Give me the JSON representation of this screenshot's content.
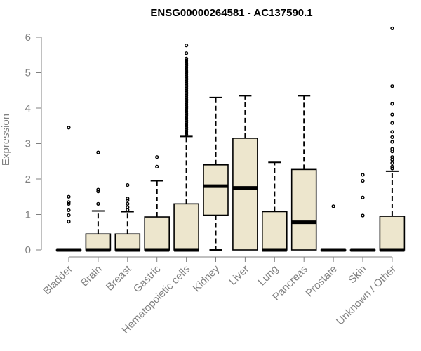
{
  "chart_data": {
    "type": "boxplot",
    "title": "ENSG00000264581 - AC137590.1",
    "xlabel": "",
    "ylabel": "Expression",
    "ylim": [
      0,
      6.2
    ],
    "yticks": [
      0,
      1,
      2,
      3,
      4,
      5,
      6
    ],
    "box_fill": "#ede6cd",
    "outline_color": "#000000",
    "axis_color": "#808080",
    "grid": false,
    "categories": [
      "Bladder",
      "Brain",
      "Breast",
      "Gastric",
      "Hematopoietic cells",
      "Kidney",
      "Liver",
      "Lung",
      "Pancreas",
      "Prostate",
      "Skin",
      "Unknown / Other"
    ],
    "boxes": [
      {
        "category": "Bladder",
        "q1": 0,
        "median": 0,
        "q3": 0,
        "whisker_low": 0,
        "whisker_high": 0,
        "outliers": [
          3.45,
          1.5,
          1.35,
          1.3,
          1.12,
          0.98,
          0.8
        ]
      },
      {
        "category": "Brain",
        "q1": 0,
        "median": 0,
        "q3": 0.45,
        "whisker_low": 0,
        "whisker_high": 1.1,
        "outliers": [
          2.75,
          1.7,
          1.65,
          1.3
        ]
      },
      {
        "category": "Breast",
        "q1": 0,
        "median": 0,
        "q3": 0.45,
        "whisker_low": 0,
        "whisker_high": 1.08,
        "outliers": [
          1.83,
          1.45,
          1.4,
          1.3,
          1.2,
          1.13
        ]
      },
      {
        "category": "Gastric",
        "q1": 0,
        "median": 0,
        "q3": 0.93,
        "whisker_low": 0,
        "whisker_high": 1.95,
        "outliers": [
          2.62,
          2.35
        ]
      },
      {
        "category": "Hematopoietic cells",
        "q1": 0,
        "median": 0,
        "q3": 1.3,
        "whisker_low": 0,
        "whisker_high": 3.2,
        "outliers": [
          5.77,
          5.55,
          5.4,
          5.35,
          5.3,
          5.25,
          5.2,
          5.15,
          5.1,
          5.05,
          5.0,
          4.95,
          4.9,
          4.85,
          4.8,
          4.75,
          4.7,
          4.65,
          4.6,
          4.55,
          4.5,
          4.45,
          4.4,
          4.35,
          4.3,
          4.25,
          4.2,
          4.15,
          4.1,
          4.05,
          4.0,
          3.95,
          3.9,
          3.85,
          3.8,
          3.75,
          3.7,
          3.65,
          3.6,
          3.55,
          3.5,
          3.45,
          3.4,
          3.35,
          3.3,
          3.25
        ]
      },
      {
        "category": "Kidney",
        "q1": 0.98,
        "median": 1.8,
        "q3": 2.4,
        "whisker_low": 0,
        "whisker_high": 4.3,
        "outliers": []
      },
      {
        "category": "Liver",
        "q1": 0,
        "median": 1.75,
        "q3": 3.15,
        "whisker_low": 0,
        "whisker_high": 4.35,
        "outliers": []
      },
      {
        "category": "Lung",
        "q1": 0,
        "median": 0,
        "q3": 1.08,
        "whisker_low": 0,
        "whisker_high": 2.47,
        "outliers": []
      },
      {
        "category": "Pancreas",
        "q1": 0,
        "median": 0.78,
        "q3": 2.27,
        "whisker_low": 0,
        "whisker_high": 4.35,
        "outliers": []
      },
      {
        "category": "Prostate",
        "q1": 0,
        "median": 0,
        "q3": 0,
        "whisker_low": 0,
        "whisker_high": 0,
        "outliers": [
          1.23
        ]
      },
      {
        "category": "Skin",
        "q1": 0,
        "median": 0,
        "q3": 0,
        "whisker_low": 0,
        "whisker_high": 0,
        "outliers": [
          2.12,
          1.95,
          1.48,
          0.97
        ]
      },
      {
        "category": "Unknown / Other",
        "q1": 0,
        "median": 0,
        "q3": 0.95,
        "whisker_low": 0,
        "whisker_high": 2.22,
        "outliers": [
          6.25,
          4.62,
          4.12,
          3.82,
          3.58,
          3.33,
          3.18,
          3.05,
          2.85,
          2.78,
          2.62,
          2.55,
          2.45,
          2.35,
          2.3
        ]
      }
    ]
  }
}
